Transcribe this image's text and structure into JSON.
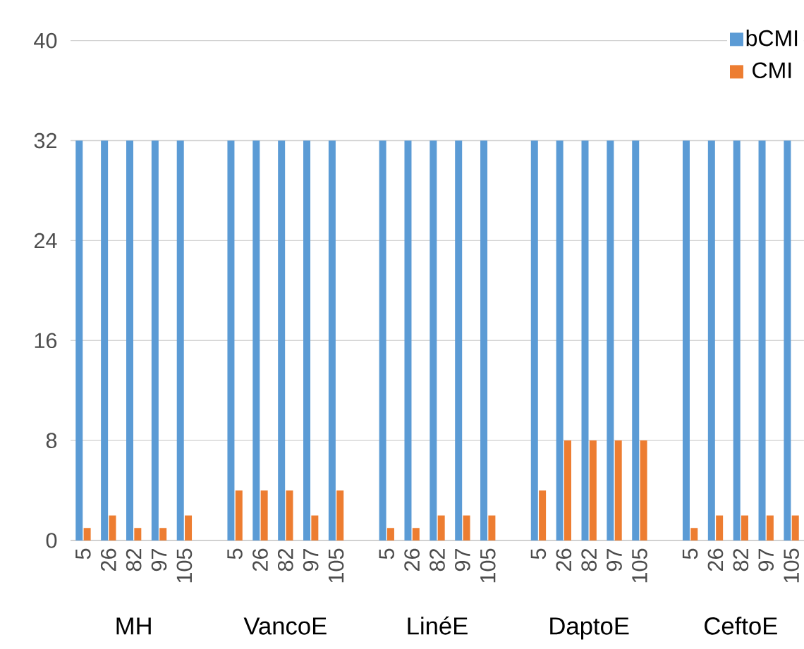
{
  "chart_data": {
    "type": "bar",
    "categories": [
      "5",
      "26",
      "82",
      "97",
      "105",
      null,
      "5",
      "26",
      "82",
      "97",
      "105",
      null,
      "5",
      "26",
      "82",
      "97",
      "105",
      null,
      "5",
      "26",
      "82",
      "97",
      "105",
      null,
      "5",
      "26",
      "82",
      "97",
      "105"
    ],
    "series": [
      {
        "name": "bCMI",
        "color": "#5b9bd5",
        "values": [
          32,
          32,
          32,
          32,
          32,
          null,
          32,
          32,
          32,
          32,
          32,
          null,
          32,
          32,
          32,
          32,
          32,
          null,
          32,
          32,
          32,
          32,
          32,
          null,
          32,
          32,
          32,
          32,
          32
        ]
      },
      {
        "name": "CMI",
        "color": "#ed7d31",
        "values": [
          1,
          2,
          1,
          1,
          2,
          null,
          4,
          4,
          4,
          2,
          4,
          null,
          1,
          1,
          2,
          2,
          2,
          null,
          4,
          8,
          8,
          8,
          8,
          null,
          1,
          2,
          2,
          2,
          2
        ]
      }
    ],
    "annotations": [
      "MH",
      "VancoE",
      "LinéE",
      "DaptoE",
      "CeftoE"
    ],
    "ylim": [
      0,
      40
    ],
    "yticks": [
      0,
      8,
      16,
      24,
      32,
      40
    ],
    "grid": "y",
    "legend": "top right"
  }
}
